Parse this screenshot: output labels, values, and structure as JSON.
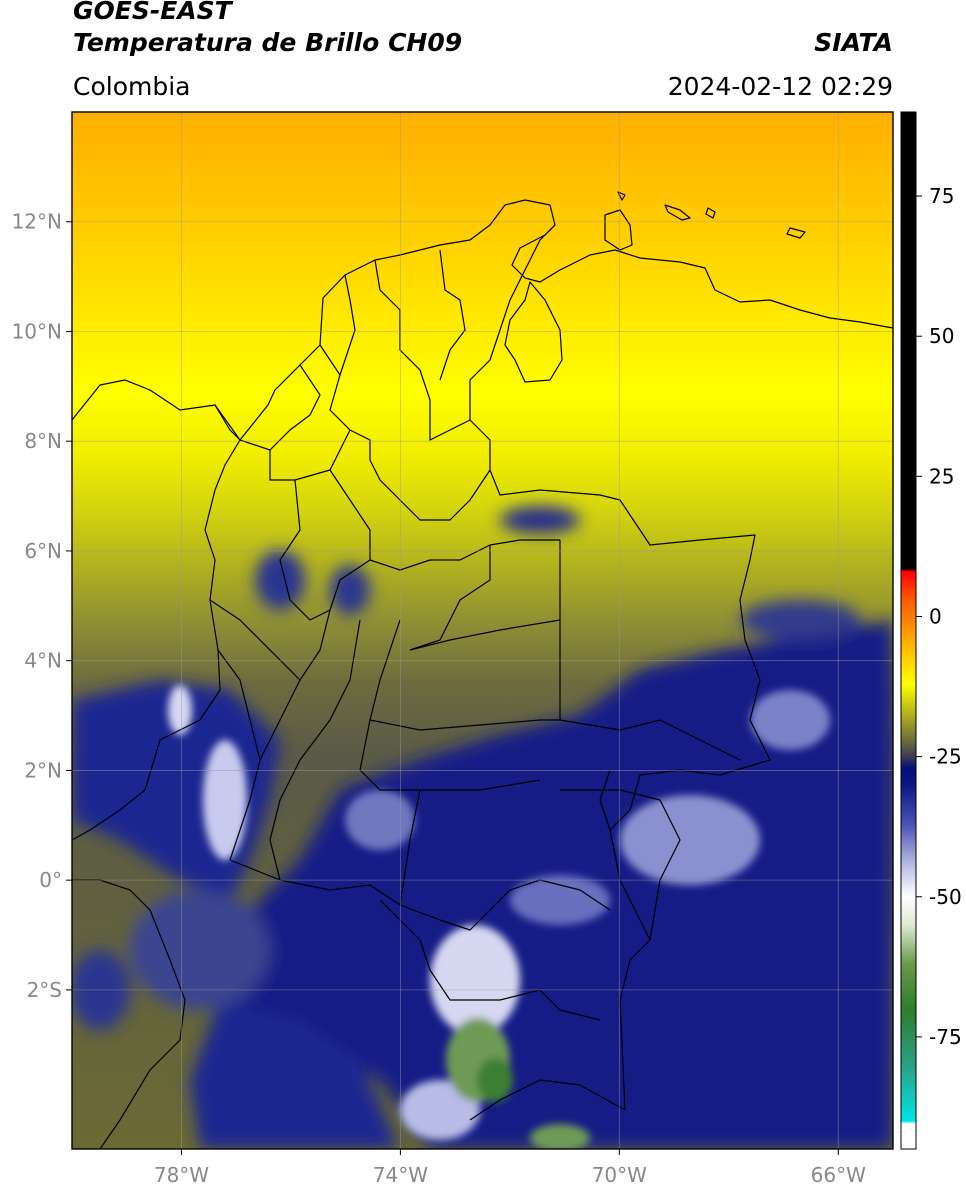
{
  "header": {
    "satellite": "GOES-EAST",
    "product": "Temperatura de Brillo CH09",
    "region": "Colombia",
    "agency": "SIATA",
    "datetime": "2024-02-12 02:29"
  },
  "map": {
    "lon_range": [
      -80,
      -65
    ],
    "lat_range": [
      -4.9,
      14
    ],
    "lon_ticks": [
      {
        "value": -78,
        "label": "78°W"
      },
      {
        "value": -74,
        "label": "74°W"
      },
      {
        "value": -70,
        "label": "70°W"
      },
      {
        "value": -66,
        "label": "66°W"
      }
    ],
    "lat_ticks": [
      {
        "value": 12,
        "label": "12°N"
      },
      {
        "value": 10,
        "label": "10°N"
      },
      {
        "value": 8,
        "label": "8°N"
      },
      {
        "value": 6,
        "label": "6°N"
      },
      {
        "value": 4,
        "label": "4°N"
      },
      {
        "value": 2,
        "label": "2°N"
      },
      {
        "value": 0,
        "label": "0°"
      },
      {
        "value": -2,
        "label": "2°S"
      }
    ],
    "grid": true
  },
  "colorbar": {
    "range": [
      -95,
      90
    ],
    "ticks": [
      {
        "value": 75,
        "label": "75"
      },
      {
        "value": 50,
        "label": "50"
      },
      {
        "value": 25,
        "label": "25"
      },
      {
        "value": 0,
        "label": "0"
      },
      {
        "value": -25,
        "label": "-25"
      },
      {
        "value": -50,
        "label": "-50"
      },
      {
        "value": -75,
        "label": "-75"
      }
    ],
    "stops": [
      {
        "value": -95,
        "color": "#ffffff"
      },
      {
        "value": -90.5,
        "color": "#ffffff"
      },
      {
        "value": -90,
        "color": "#00e5e5"
      },
      {
        "value": -80,
        "color": "#2aa086"
      },
      {
        "value": -70,
        "color": "#2f7d2c"
      },
      {
        "value": -62,
        "color": "#6a9a4a"
      },
      {
        "value": -55,
        "color": "#dfe8d4"
      },
      {
        "value": -50,
        "color": "#ffffff"
      },
      {
        "value": -44,
        "color": "#b4b8e2"
      },
      {
        "value": -37,
        "color": "#4a52b4"
      },
      {
        "value": -30,
        "color": "#0a1684"
      },
      {
        "value": -27,
        "color": "#060f7a"
      },
      {
        "value": -25,
        "color": "#3c3d50"
      },
      {
        "value": -22,
        "color": "#6e6e38"
      },
      {
        "value": -17,
        "color": "#b7b81a"
      },
      {
        "value": -12,
        "color": "#ffff00"
      },
      {
        "value": -5,
        "color": "#ffb400"
      },
      {
        "value": 3,
        "color": "#ff5a00"
      },
      {
        "value": 8,
        "color": "#ff0000"
      },
      {
        "value": 8.5,
        "color": "#000000"
      },
      {
        "value": 90,
        "color": "#000000"
      }
    ]
  }
}
